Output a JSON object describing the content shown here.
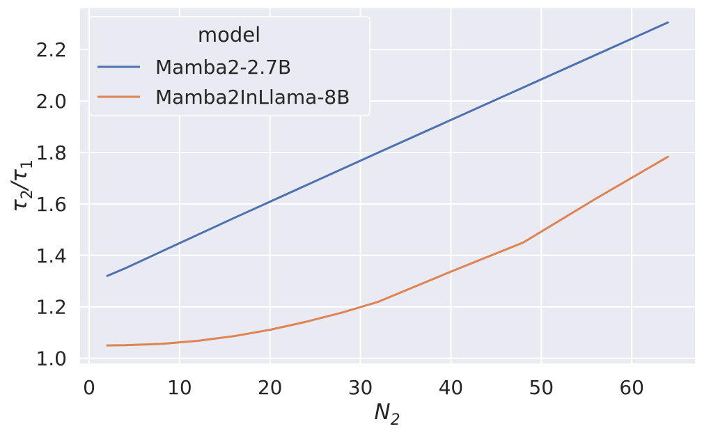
{
  "chart_data": {
    "type": "line",
    "title": "",
    "xlabel": "N",
    "xlabel_subscript": "2",
    "ylabel_parts": [
      "τ",
      "2",
      "/τ",
      "1"
    ],
    "xlim": [
      -1,
      67
    ],
    "ylim": [
      0.98,
      2.36
    ],
    "x_ticks": [
      0,
      10,
      20,
      30,
      40,
      50,
      60
    ],
    "y_ticks": [
      1.0,
      1.2,
      1.4,
      1.6,
      1.8,
      2.0,
      2.2
    ],
    "x_tick_labels": [
      "0",
      "10",
      "20",
      "30",
      "40",
      "50",
      "60"
    ],
    "y_tick_labels": [
      "1.0",
      "1.2",
      "1.4",
      "1.6",
      "1.8",
      "2.0",
      "2.2"
    ],
    "grid": true,
    "legend": {
      "title": "model",
      "placement": "top-left"
    },
    "series": [
      {
        "name": "Mamba2-2.7B",
        "color": "#4c72b0",
        "x": [
          2,
          4,
          8,
          16,
          32,
          64
        ],
        "y": [
          1.32,
          1.35,
          1.415,
          1.545,
          1.8,
          2.305
        ]
      },
      {
        "name": "Mamba2InLlama-8B",
        "color": "#dd8452",
        "x": [
          2,
          4,
          8,
          12,
          16,
          20,
          24,
          28,
          32,
          40,
          48,
          56,
          64
        ],
        "y": [
          1.05,
          1.051,
          1.056,
          1.068,
          1.086,
          1.111,
          1.142,
          1.178,
          1.22,
          1.337,
          1.45,
          1.62,
          1.783
        ]
      }
    ]
  }
}
